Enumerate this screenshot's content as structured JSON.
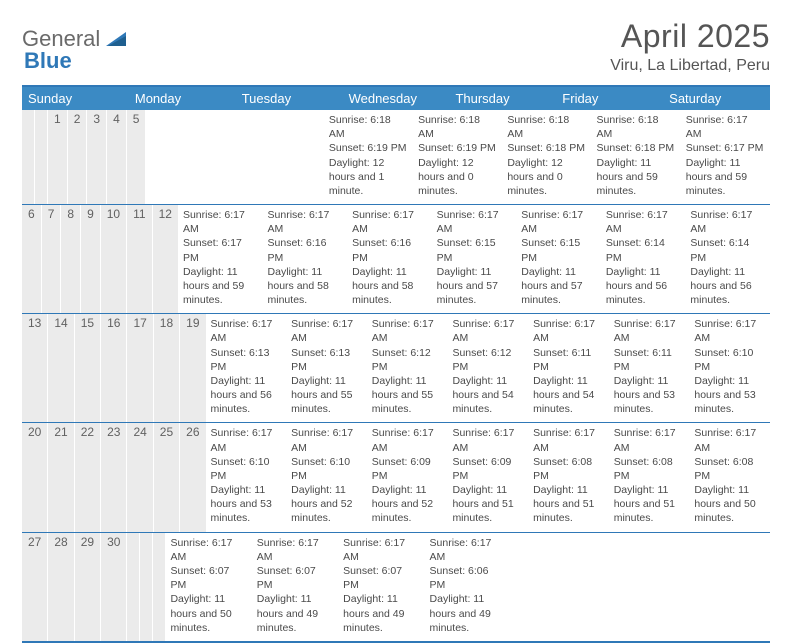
{
  "logo": {
    "word1": "General",
    "word2": "Blue"
  },
  "title": "April 2025",
  "location": "Viru, La Libertad, Peru",
  "colors": {
    "header_bg": "#3b8ac4",
    "rule": "#2f78b7",
    "daynum_bg": "#ebebeb",
    "text": "#4a4a4a"
  },
  "day_names": [
    "Sunday",
    "Monday",
    "Tuesday",
    "Wednesday",
    "Thursday",
    "Friday",
    "Saturday"
  ],
  "weeks": [
    [
      null,
      null,
      {
        "n": "1",
        "sunrise": "6:18 AM",
        "sunset": "6:19 PM",
        "daylight": "12 hours and 1 minute."
      },
      {
        "n": "2",
        "sunrise": "6:18 AM",
        "sunset": "6:19 PM",
        "daylight": "12 hours and 0 minutes."
      },
      {
        "n": "3",
        "sunrise": "6:18 AM",
        "sunset": "6:18 PM",
        "daylight": "12 hours and 0 minutes."
      },
      {
        "n": "4",
        "sunrise": "6:18 AM",
        "sunset": "6:18 PM",
        "daylight": "11 hours and 59 minutes."
      },
      {
        "n": "5",
        "sunrise": "6:17 AM",
        "sunset": "6:17 PM",
        "daylight": "11 hours and 59 minutes."
      }
    ],
    [
      {
        "n": "6",
        "sunrise": "6:17 AM",
        "sunset": "6:17 PM",
        "daylight": "11 hours and 59 minutes."
      },
      {
        "n": "7",
        "sunrise": "6:17 AM",
        "sunset": "6:16 PM",
        "daylight": "11 hours and 58 minutes."
      },
      {
        "n": "8",
        "sunrise": "6:17 AM",
        "sunset": "6:16 PM",
        "daylight": "11 hours and 58 minutes."
      },
      {
        "n": "9",
        "sunrise": "6:17 AM",
        "sunset": "6:15 PM",
        "daylight": "11 hours and 57 minutes."
      },
      {
        "n": "10",
        "sunrise": "6:17 AM",
        "sunset": "6:15 PM",
        "daylight": "11 hours and 57 minutes."
      },
      {
        "n": "11",
        "sunrise": "6:17 AM",
        "sunset": "6:14 PM",
        "daylight": "11 hours and 56 minutes."
      },
      {
        "n": "12",
        "sunrise": "6:17 AM",
        "sunset": "6:14 PM",
        "daylight": "11 hours and 56 minutes."
      }
    ],
    [
      {
        "n": "13",
        "sunrise": "6:17 AM",
        "sunset": "6:13 PM",
        "daylight": "11 hours and 56 minutes."
      },
      {
        "n": "14",
        "sunrise": "6:17 AM",
        "sunset": "6:13 PM",
        "daylight": "11 hours and 55 minutes."
      },
      {
        "n": "15",
        "sunrise": "6:17 AM",
        "sunset": "6:12 PM",
        "daylight": "11 hours and 55 minutes."
      },
      {
        "n": "16",
        "sunrise": "6:17 AM",
        "sunset": "6:12 PM",
        "daylight": "11 hours and 54 minutes."
      },
      {
        "n": "17",
        "sunrise": "6:17 AM",
        "sunset": "6:11 PM",
        "daylight": "11 hours and 54 minutes."
      },
      {
        "n": "18",
        "sunrise": "6:17 AM",
        "sunset": "6:11 PM",
        "daylight": "11 hours and 53 minutes."
      },
      {
        "n": "19",
        "sunrise": "6:17 AM",
        "sunset": "6:10 PM",
        "daylight": "11 hours and 53 minutes."
      }
    ],
    [
      {
        "n": "20",
        "sunrise": "6:17 AM",
        "sunset": "6:10 PM",
        "daylight": "11 hours and 53 minutes."
      },
      {
        "n": "21",
        "sunrise": "6:17 AM",
        "sunset": "6:10 PM",
        "daylight": "11 hours and 52 minutes."
      },
      {
        "n": "22",
        "sunrise": "6:17 AM",
        "sunset": "6:09 PM",
        "daylight": "11 hours and 52 minutes."
      },
      {
        "n": "23",
        "sunrise": "6:17 AM",
        "sunset": "6:09 PM",
        "daylight": "11 hours and 51 minutes."
      },
      {
        "n": "24",
        "sunrise": "6:17 AM",
        "sunset": "6:08 PM",
        "daylight": "11 hours and 51 minutes."
      },
      {
        "n": "25",
        "sunrise": "6:17 AM",
        "sunset": "6:08 PM",
        "daylight": "11 hours and 51 minutes."
      },
      {
        "n": "26",
        "sunrise": "6:17 AM",
        "sunset": "6:08 PM",
        "daylight": "11 hours and 50 minutes."
      }
    ],
    [
      {
        "n": "27",
        "sunrise": "6:17 AM",
        "sunset": "6:07 PM",
        "daylight": "11 hours and 50 minutes."
      },
      {
        "n": "28",
        "sunrise": "6:17 AM",
        "sunset": "6:07 PM",
        "daylight": "11 hours and 49 minutes."
      },
      {
        "n": "29",
        "sunrise": "6:17 AM",
        "sunset": "6:07 PM",
        "daylight": "11 hours and 49 minutes."
      },
      {
        "n": "30",
        "sunrise": "6:17 AM",
        "sunset": "6:06 PM",
        "daylight": "11 hours and 49 minutes."
      },
      null,
      null,
      null
    ]
  ],
  "labels": {
    "sunrise": "Sunrise:",
    "sunset": "Sunset:",
    "daylight": "Daylight:"
  }
}
